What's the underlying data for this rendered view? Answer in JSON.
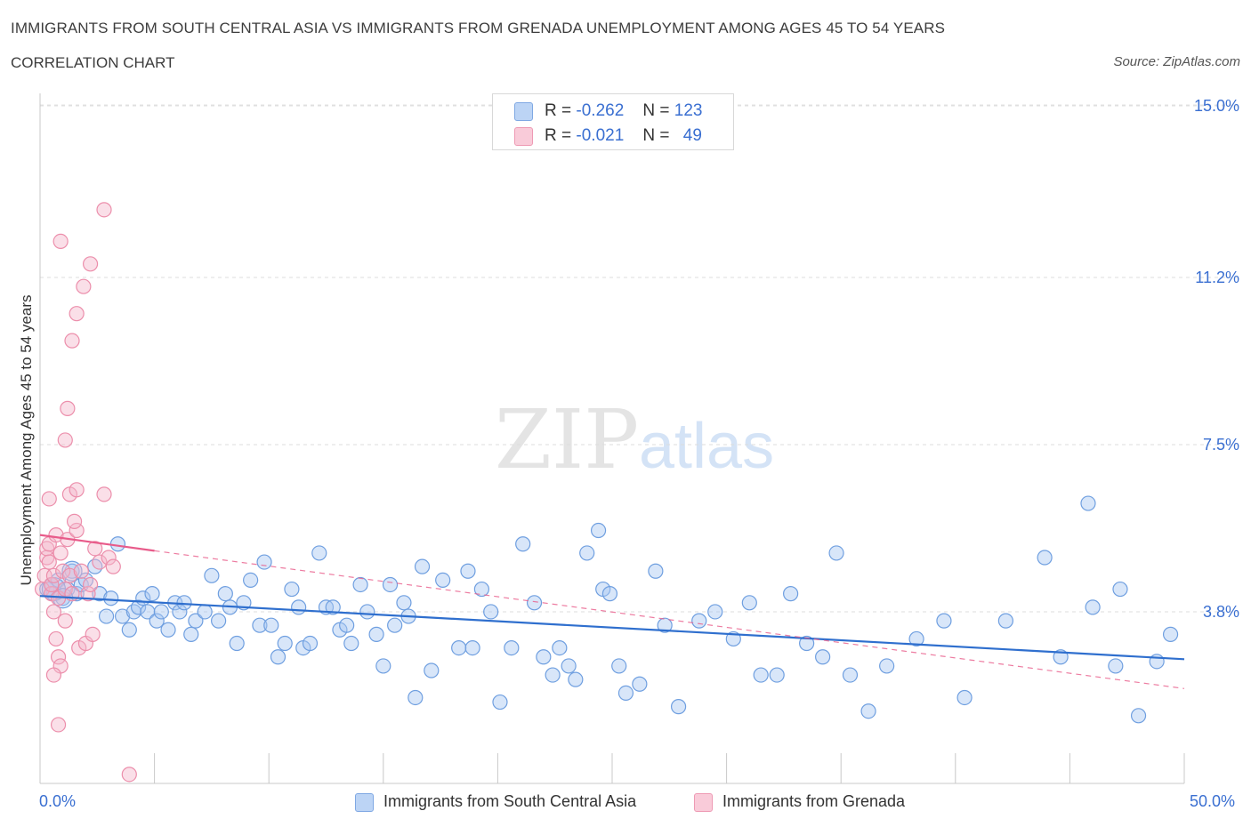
{
  "header": {
    "title": "IMMIGRANTS FROM SOUTH CENTRAL ASIA VS IMMIGRANTS FROM GRENADA UNEMPLOYMENT AMONG AGES 45 TO 54 YEARS",
    "subtitle": "CORRELATION CHART",
    "source": "Source: ZipAtlas.com"
  },
  "legend": {
    "r_label": "R =",
    "n_label": "N =",
    "rows": [
      {
        "r": "-0.262",
        "n": "123",
        "color": "#a9c8f2"
      },
      {
        "r": "-0.021",
        "n": "49",
        "color": "#f5b8cb"
      }
    ]
  },
  "bottom_legend": {
    "series1": "Immigrants from South Central Asia",
    "series2": "Immigrants from Grenada"
  },
  "axis": {
    "x_min_label": "0.0%",
    "x_max_label": "50.0%"
  },
  "chart_data": {
    "type": "scatter",
    "title": "IMMIGRANTS FROM SOUTH CENTRAL ASIA VS IMMIGRANTS FROM GRENADA UNEMPLOYMENT AMONG AGES 45 TO 54 YEARS",
    "xlabel": "",
    "ylabel": "Unemployment Among Ages 45 to 54 years",
    "xlim": [
      0,
      50
    ],
    "ylim": [
      0,
      15
    ],
    "y_ticks": [
      3.8,
      7.5,
      11.2,
      15.0
    ],
    "y_tick_labels": [
      "3.8%",
      "7.5%",
      "11.2%",
      "15.0%"
    ],
    "watermark": "ZIPatlas",
    "colors": {
      "blue_fill": "#a9c8f2",
      "blue_stroke": "#6f9fe0",
      "blue_line": "#2f6fce",
      "pink_fill": "#f5b8cb",
      "pink_stroke": "#ec8eab",
      "pink_line": "#e85b8a",
      "axis_blue": "#3a6fd1"
    },
    "series": [
      {
        "name": "Immigrants from South Central Asia",
        "r": -0.262,
        "n": 123,
        "trend": {
          "x": [
            0,
            50
          ],
          "y": [
            4.15,
            2.75
          ],
          "style": "solid"
        },
        "points": [
          [
            0.3,
            4.3
          ],
          [
            0.5,
            4.4
          ],
          [
            0.6,
            4.2
          ],
          [
            0.8,
            4.5
          ],
          [
            1.0,
            4.1
          ],
          [
            1.2,
            4.3
          ],
          [
            1.4,
            4.7
          ],
          [
            1.6,
            4.2
          ],
          [
            1.8,
            4.4
          ],
          [
            2.0,
            4.5
          ],
          [
            2.4,
            4.8
          ],
          [
            2.6,
            4.2
          ],
          [
            2.9,
            3.7
          ],
          [
            3.1,
            4.1
          ],
          [
            3.4,
            5.3
          ],
          [
            3.6,
            3.7
          ],
          [
            3.9,
            3.4
          ],
          [
            4.1,
            3.8
          ],
          [
            4.3,
            3.9
          ],
          [
            4.5,
            4.1
          ],
          [
            4.7,
            3.8
          ],
          [
            4.9,
            4.2
          ],
          [
            5.1,
            3.6
          ],
          [
            5.3,
            3.8
          ],
          [
            5.6,
            3.4
          ],
          [
            5.9,
            4.0
          ],
          [
            6.1,
            3.8
          ],
          [
            6.3,
            4.0
          ],
          [
            6.6,
            3.3
          ],
          [
            6.8,
            3.6
          ],
          [
            7.2,
            3.8
          ],
          [
            7.5,
            4.6
          ],
          [
            7.8,
            3.6
          ],
          [
            8.1,
            4.2
          ],
          [
            8.3,
            3.9
          ],
          [
            8.6,
            3.1
          ],
          [
            8.9,
            4.0
          ],
          [
            9.2,
            4.5
          ],
          [
            9.6,
            3.5
          ],
          [
            9.8,
            4.9
          ],
          [
            10.1,
            3.5
          ],
          [
            10.4,
            2.8
          ],
          [
            10.7,
            3.1
          ],
          [
            11.0,
            4.3
          ],
          [
            11.3,
            3.9
          ],
          [
            11.5,
            3.0
          ],
          [
            11.8,
            3.1
          ],
          [
            12.2,
            5.1
          ],
          [
            12.5,
            3.9
          ],
          [
            12.8,
            3.9
          ],
          [
            13.1,
            3.4
          ],
          [
            13.4,
            3.5
          ],
          [
            13.6,
            3.1
          ],
          [
            14.0,
            4.4
          ],
          [
            14.3,
            3.8
          ],
          [
            14.7,
            3.3
          ],
          [
            15.0,
            2.6
          ],
          [
            15.3,
            4.4
          ],
          [
            15.5,
            3.5
          ],
          [
            15.9,
            4.0
          ],
          [
            16.1,
            3.7
          ],
          [
            16.4,
            1.9
          ],
          [
            16.7,
            4.8
          ],
          [
            17.1,
            2.5
          ],
          [
            17.6,
            4.5
          ],
          [
            18.3,
            3.0
          ],
          [
            18.7,
            4.7
          ],
          [
            18.9,
            3.0
          ],
          [
            19.3,
            4.3
          ],
          [
            19.7,
            3.8
          ],
          [
            20.1,
            1.8
          ],
          [
            20.6,
            3.0
          ],
          [
            21.1,
            5.3
          ],
          [
            21.6,
            4.0
          ],
          [
            22.0,
            2.8
          ],
          [
            22.4,
            2.4
          ],
          [
            22.7,
            3.0
          ],
          [
            23.1,
            2.6
          ],
          [
            23.4,
            2.3
          ],
          [
            23.9,
            5.1
          ],
          [
            24.4,
            5.6
          ],
          [
            24.6,
            4.3
          ],
          [
            24.9,
            4.2
          ],
          [
            25.3,
            2.6
          ],
          [
            25.6,
            2.0
          ],
          [
            26.2,
            2.2
          ],
          [
            26.9,
            4.7
          ],
          [
            27.3,
            3.5
          ],
          [
            27.9,
            1.7
          ],
          [
            28.8,
            3.6
          ],
          [
            29.5,
            3.8
          ],
          [
            30.3,
            3.2
          ],
          [
            31.0,
            4.0
          ],
          [
            31.5,
            2.4
          ],
          [
            32.2,
            2.4
          ],
          [
            32.8,
            4.2
          ],
          [
            33.5,
            3.1
          ],
          [
            34.2,
            2.8
          ],
          [
            34.8,
            5.1
          ],
          [
            35.4,
            2.4
          ],
          [
            36.2,
            1.6
          ],
          [
            37.0,
            2.6
          ],
          [
            38.3,
            3.2
          ],
          [
            39.5,
            3.6
          ],
          [
            40.4,
            1.9
          ],
          [
            42.2,
            3.6
          ],
          [
            43.9,
            5.0
          ],
          [
            44.6,
            2.8
          ],
          [
            45.8,
            6.2
          ],
          [
            46.0,
            3.9
          ],
          [
            47.0,
            2.6
          ],
          [
            47.2,
            4.3
          ],
          [
            48.0,
            1.5
          ],
          [
            48.8,
            2.7
          ],
          [
            49.4,
            3.3
          ]
        ]
      },
      {
        "name": "Immigrants from Grenada",
        "r": -0.021,
        "n": 49,
        "trend": {
          "x": [
            0,
            5
          ],
          "y": [
            5.5,
            5.15
          ],
          "style": "solid",
          "extended": {
            "x": [
              5,
              50
            ],
            "y": [
              5.15,
              2.1
            ],
            "style": "dashed"
          }
        },
        "points": [
          [
            0.1,
            4.3
          ],
          [
            0.2,
            4.6
          ],
          [
            0.3,
            5.0
          ],
          [
            0.3,
            5.2
          ],
          [
            0.4,
            4.9
          ],
          [
            0.4,
            5.3
          ],
          [
            0.5,
            4.2
          ],
          [
            0.5,
            4.4
          ],
          [
            0.6,
            4.6
          ],
          [
            0.7,
            5.5
          ],
          [
            0.8,
            4.1
          ],
          [
            0.9,
            5.1
          ],
          [
            1.0,
            4.7
          ],
          [
            1.1,
            4.3
          ],
          [
            1.2,
            5.4
          ],
          [
            1.3,
            4.6
          ],
          [
            1.4,
            4.2
          ],
          [
            1.6,
            5.6
          ],
          [
            1.8,
            4.7
          ],
          [
            2.1,
            4.2
          ],
          [
            2.2,
            4.4
          ],
          [
            2.4,
            5.2
          ],
          [
            2.6,
            4.9
          ],
          [
            2.8,
            6.4
          ],
          [
            3.0,
            5.0
          ],
          [
            3.2,
            4.8
          ],
          [
            0.4,
            6.3
          ],
          [
            0.6,
            3.8
          ],
          [
            0.7,
            3.2
          ],
          [
            0.8,
            2.8
          ],
          [
            0.9,
            2.6
          ],
          [
            1.1,
            3.6
          ],
          [
            1.3,
            6.4
          ],
          [
            1.5,
            5.8
          ],
          [
            1.6,
            6.5
          ],
          [
            1.7,
            3.0
          ],
          [
            2.0,
            3.1
          ],
          [
            2.3,
            3.3
          ],
          [
            0.8,
            1.3
          ],
          [
            0.6,
            2.4
          ],
          [
            1.1,
            7.6
          ],
          [
            1.2,
            8.3
          ],
          [
            1.4,
            9.8
          ],
          [
            1.6,
            10.4
          ],
          [
            1.9,
            11.0
          ],
          [
            2.2,
            11.5
          ],
          [
            0.9,
            12.0
          ],
          [
            2.8,
            12.7
          ],
          [
            3.9,
            0.2
          ]
        ]
      }
    ]
  }
}
